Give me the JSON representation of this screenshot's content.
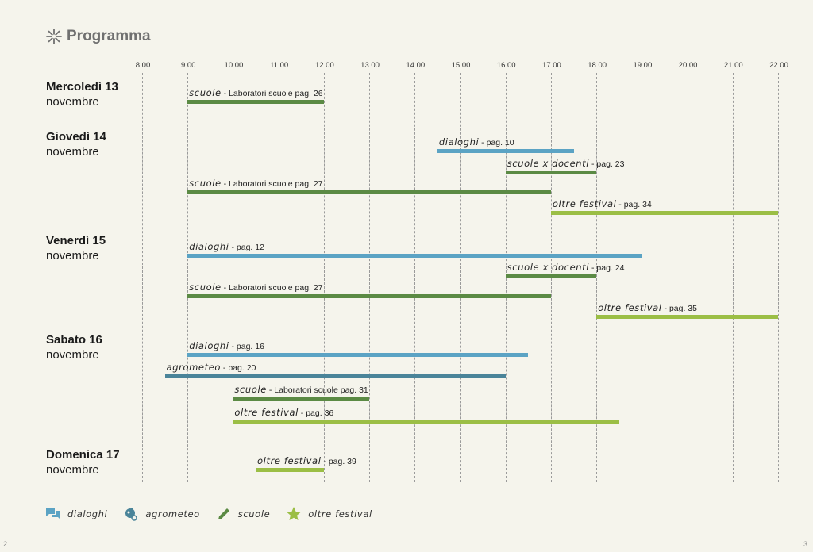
{
  "title": "Programma",
  "page_numbers": {
    "left": "2",
    "right": "3"
  },
  "colors": {
    "dialoghi": "#5ba3c4",
    "agrometeo": "#4a8499",
    "scuole": "#5b8a44",
    "oltre": "#9bbe45",
    "background": "#f5f4ec"
  },
  "legend": [
    {
      "key": "dialoghi",
      "label": "dialoghi",
      "icon": "speech-bubbles-icon"
    },
    {
      "key": "agrometeo",
      "label": "agrometeo",
      "icon": "weather-icon"
    },
    {
      "key": "scuole",
      "label": "scuole",
      "icon": "pencil-icon"
    },
    {
      "key": "oltre",
      "label": "oltre festival",
      "icon": "star-icon"
    }
  ],
  "chart_data": {
    "type": "gantt",
    "x_ticks": [
      "8.00",
      "9.00",
      "10.00",
      "11.00",
      "12.00",
      "13.00",
      "14.00",
      "15.00",
      "16.00",
      "17.00",
      "18.00",
      "19.00",
      "20.00",
      "21.00",
      "22.00"
    ],
    "xlim": [
      8,
      22
    ],
    "grid": true,
    "days": [
      {
        "day": "Mercoledì 13",
        "month": "novembre",
        "events": [
          {
            "category": "scuole",
            "tag": "scuole",
            "text": " - Laboratori scuole pag. 26",
            "start": 9,
            "end": 12
          }
        ]
      },
      {
        "day": "Giovedì 14",
        "month": "novembre",
        "events": [
          {
            "category": "dialoghi",
            "tag": "dialoghi",
            "text": " - pag. 10",
            "start": 14.5,
            "end": 17.5
          },
          {
            "category": "scuole",
            "tag": "scuole x docenti",
            "text": " - pag. 23",
            "start": 16,
            "end": 18
          },
          {
            "category": "scuole",
            "tag": "scuole",
            "text": " - Laboratori scuole pag. 27",
            "start": 9,
            "end": 17
          },
          {
            "category": "oltre",
            "tag": "oltre festival",
            "text": " - pag. 34",
            "start": 17,
            "end": 22
          }
        ]
      },
      {
        "day": "Venerdì 15",
        "month": "novembre",
        "events": [
          {
            "category": "dialoghi",
            "tag": "dialoghi",
            "text": " - pag. 12",
            "start": 9,
            "end": 19
          },
          {
            "category": "scuole",
            "tag": "scuole x docenti",
            "text": " - pag. 24",
            "start": 16,
            "end": 18
          },
          {
            "category": "scuole",
            "tag": "scuole",
            "text": " - Laboratori scuole pag. 27",
            "start": 9,
            "end": 17
          },
          {
            "category": "oltre",
            "tag": "oltre festival",
            "text": " - pag. 35",
            "start": 18,
            "end": 22
          }
        ]
      },
      {
        "day": "Sabato 16",
        "month": "novembre",
        "events": [
          {
            "category": "dialoghi",
            "tag": "dialoghi",
            "text": " - pag. 16",
            "start": 9,
            "end": 16.5
          },
          {
            "category": "agrometeo",
            "tag": "agrometeo",
            "text": " - pag. 20",
            "start": 8.5,
            "end": 16
          },
          {
            "category": "scuole",
            "tag": "scuole",
            "text": " - Laboratori scuole pag. 31",
            "start": 10,
            "end": 13
          },
          {
            "category": "oltre",
            "tag": "oltre festival",
            "text": " - pag. 36",
            "start": 10,
            "end": 18.5
          }
        ]
      },
      {
        "day": "Domenica 17",
        "month": "novembre",
        "events": [
          {
            "category": "oltre",
            "tag": "oltre festival",
            "text": " - pag. 39",
            "start": 10.5,
            "end": 12
          }
        ]
      }
    ]
  }
}
